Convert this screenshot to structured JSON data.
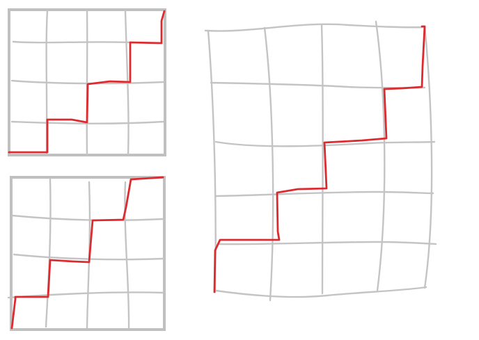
{
  "diagram": {
    "panels": [
      {
        "id": "top-left",
        "grid_columns": 4,
        "grid_rows": 4,
        "framed": true
      },
      {
        "id": "bottom-left",
        "grid_columns": 4,
        "grid_rows": 4,
        "framed": true
      },
      {
        "id": "right",
        "grid_columns": 5,
        "grid_rows": 5,
        "framed": false
      }
    ]
  },
  "colors": {
    "grid": "#c4c4c4",
    "frame": "#c0c0c0",
    "path": "#dc2a2f",
    "background": "#ffffff"
  }
}
